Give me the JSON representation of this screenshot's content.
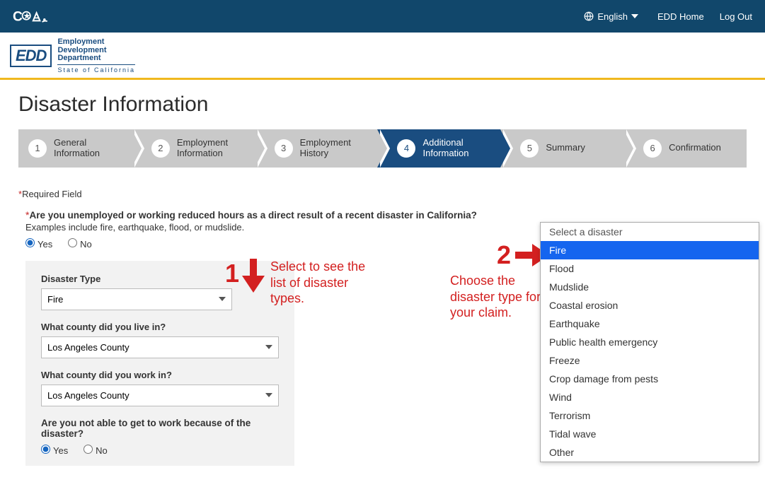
{
  "topbar": {
    "language": "English",
    "home_link": "EDD Home",
    "logout": "Log Out"
  },
  "edd_logo": {
    "abbrev": "EDD",
    "line1": "Employment",
    "line2": "Development",
    "line3": "Department",
    "state_line": "State of California"
  },
  "page_title": "Disaster Information",
  "steps": [
    {
      "num": "1",
      "label": "General Information"
    },
    {
      "num": "2",
      "label": "Employment Information"
    },
    {
      "num": "3",
      "label": "Employment History"
    },
    {
      "num": "4",
      "label": "Additional Information"
    },
    {
      "num": "5",
      "label": "Summary"
    },
    {
      "num": "6",
      "label": "Confirmation"
    }
  ],
  "active_step_index": 3,
  "required_label": "Required Field",
  "q1": {
    "text": "Are you unemployed or working reduced hours as a direct result of a recent disaster in California?",
    "hint": "Examples include fire, earthquake, flood, or mudslide.",
    "yes": "Yes",
    "no": "No",
    "value": "Yes"
  },
  "disaster_type": {
    "label": "Disaster Type",
    "value": "Fire"
  },
  "county_live": {
    "label": "What county did you live in?",
    "value": "Los Angeles County"
  },
  "county_work": {
    "label": "What county did you work in?",
    "value": "Los Angeles County"
  },
  "q2": {
    "text": "Are you not able to get to work because of the disaster?",
    "yes": "Yes",
    "no": "No",
    "value": "Yes"
  },
  "dropdown_options": [
    "Select a disaster",
    "Fire",
    "Flood",
    "Mudslide",
    "Coastal erosion",
    "Earthquake",
    "Public health emergency",
    "Freeze",
    "Crop damage from pests",
    "Wind",
    "Terrorism",
    "Tidal wave",
    "Other"
  ],
  "dropdown_selected_index": 1,
  "annotations": {
    "num1": "1",
    "text1": "Select to see the list of disaster types.",
    "num2": "2",
    "text2": "Choose the disaster type for your claim."
  },
  "colors": {
    "topbar_bg": "#11476b",
    "accent_gold": "#f0b81e",
    "step_inactive": "#c9c9c9",
    "step_active": "#1a4d80",
    "annotation_red": "#d32020",
    "dropdown_highlight": "#1565ef"
  }
}
